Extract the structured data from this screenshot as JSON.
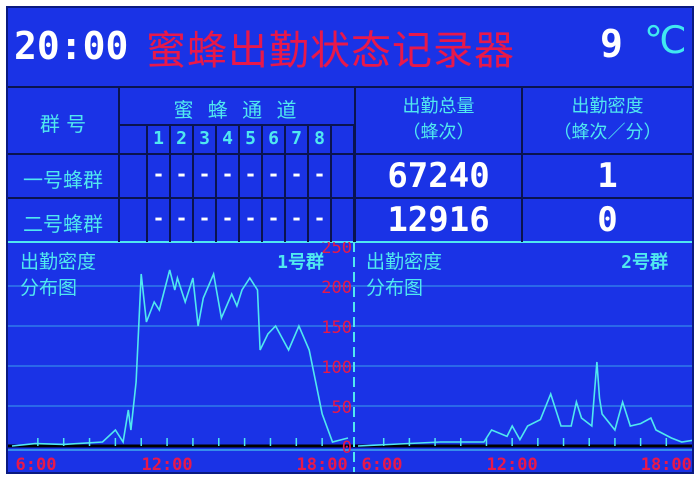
{
  "header": {
    "time": "20:00",
    "title": "蜜蜂出勤状态记录器",
    "temperature": "9",
    "temp_unit": "℃"
  },
  "table": {
    "col_group": "群 号",
    "col_channels": "蜜 蜂 通 道",
    "channels": [
      "1",
      "2",
      "3",
      "4",
      "5",
      "6",
      "7",
      "8"
    ],
    "col_total": "出勤总量",
    "col_total_unit": "（蜂次）",
    "col_density": "出勤密度",
    "col_density_unit": "（蜂次／分）",
    "rows": [
      {
        "name": "一号蜂群",
        "channels": [
          "-",
          "-",
          "-",
          "-",
          "-",
          "-",
          "-",
          "-"
        ],
        "total": "67240",
        "density": "1"
      },
      {
        "name": "二号蜂群",
        "channels": [
          "-",
          "-",
          "-",
          "-",
          "-",
          "-",
          "-",
          "-"
        ],
        "total": "12916",
        "density": "0"
      }
    ]
  },
  "colors": {
    "background": "#1a33e6",
    "line": "#50e8f0",
    "axis_label": "#e8184a",
    "value": "#ffffff"
  },
  "chart_data": [
    {
      "type": "line",
      "title_line1": "出勤密度",
      "title_line2": "分布图",
      "series_label": "1号群",
      "xlim": [
        "6:00",
        "19:00"
      ],
      "ylim": [
        0,
        250
      ],
      "yticks": [
        "0",
        "50",
        "100",
        "150",
        "200",
        "250"
      ],
      "xticks": [
        "6:00",
        "12:00",
        "18:00"
      ],
      "grid": true,
      "x": [
        6,
        6.9,
        8,
        9.5,
        10,
        10.3,
        10.5,
        10.6,
        10.8,
        11,
        11.2,
        11.5,
        11.7,
        12.1,
        12.3,
        12.4,
        12.7,
        13,
        13.2,
        13.4,
        13.8,
        14.1,
        14.5,
        14.7,
        14.9,
        15.2,
        15.5,
        15.6,
        15.9,
        16.2,
        16.7,
        17.1,
        17.5,
        18,
        18.4,
        19
      ],
      "values": [
        0,
        3,
        2,
        5,
        20,
        5,
        45,
        20,
        80,
        215,
        155,
        180,
        170,
        220,
        195,
        210,
        180,
        210,
        150,
        185,
        215,
        160,
        190,
        175,
        195,
        210,
        195,
        120,
        140,
        150,
        120,
        150,
        120,
        40,
        5,
        10
      ]
    },
    {
      "type": "line",
      "title_line1": "出勤密度",
      "title_line2": "分布图",
      "series_label": "2号群",
      "xlim": [
        "6:00",
        "19:00"
      ],
      "ylim": [
        0,
        250
      ],
      "xticks": [
        "6:00",
        "12:00",
        "18:00"
      ],
      "grid": true,
      "x": [
        6,
        9.2,
        9.7,
        10.4,
        10.9,
        11.2,
        11.8,
        12,
        12.3,
        12.6,
        13.1,
        13.5,
        13.9,
        14.3,
        14.5,
        14.7,
        15.1,
        15.3,
        15.4,
        15.5,
        16,
        16.3,
        16.6,
        17,
        17.4,
        17.6,
        18.2,
        18.6,
        19.2
      ],
      "values": [
        0,
        5,
        5,
        5,
        5,
        20,
        12,
        25,
        8,
        25,
        33,
        65,
        25,
        25,
        55,
        35,
        25,
        105,
        60,
        40,
        20,
        55,
        25,
        28,
        35,
        20,
        10,
        5,
        8
      ]
    }
  ]
}
